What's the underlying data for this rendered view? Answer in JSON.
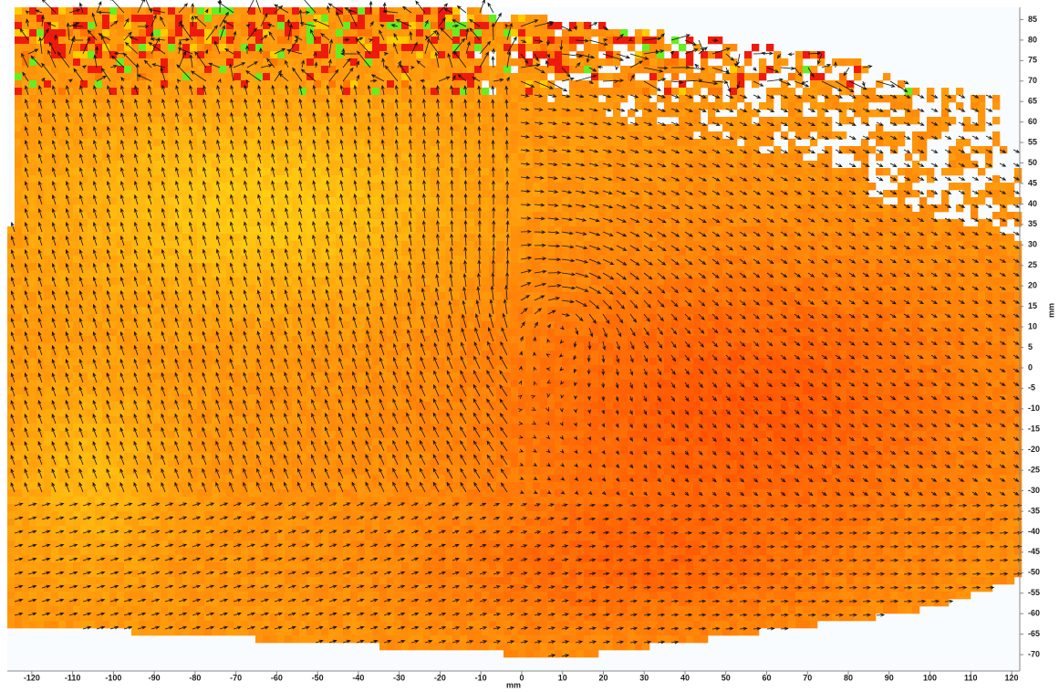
{
  "chart_data": {
    "type": "vector-field",
    "xlabel": "mm",
    "ylabel": "mm",
    "xlim": [
      -126,
      122
    ],
    "ylim": [
      -74,
      88
    ],
    "xticks": [
      -120,
      -110,
      -100,
      -90,
      -80,
      -70,
      -60,
      -50,
      -40,
      -30,
      -20,
      -10,
      0,
      10,
      20,
      30,
      40,
      50,
      60,
      70,
      80,
      90,
      100,
      110,
      120
    ],
    "yticks": [
      -70,
      -65,
      -60,
      -55,
      -50,
      -45,
      -40,
      -35,
      -30,
      -25,
      -20,
      -15,
      -10,
      -5,
      0,
      5,
      10,
      15,
      20,
      25,
      30,
      35,
      40,
      45,
      50,
      55,
      60,
      65,
      70,
      75,
      80,
      85
    ]
  }
}
